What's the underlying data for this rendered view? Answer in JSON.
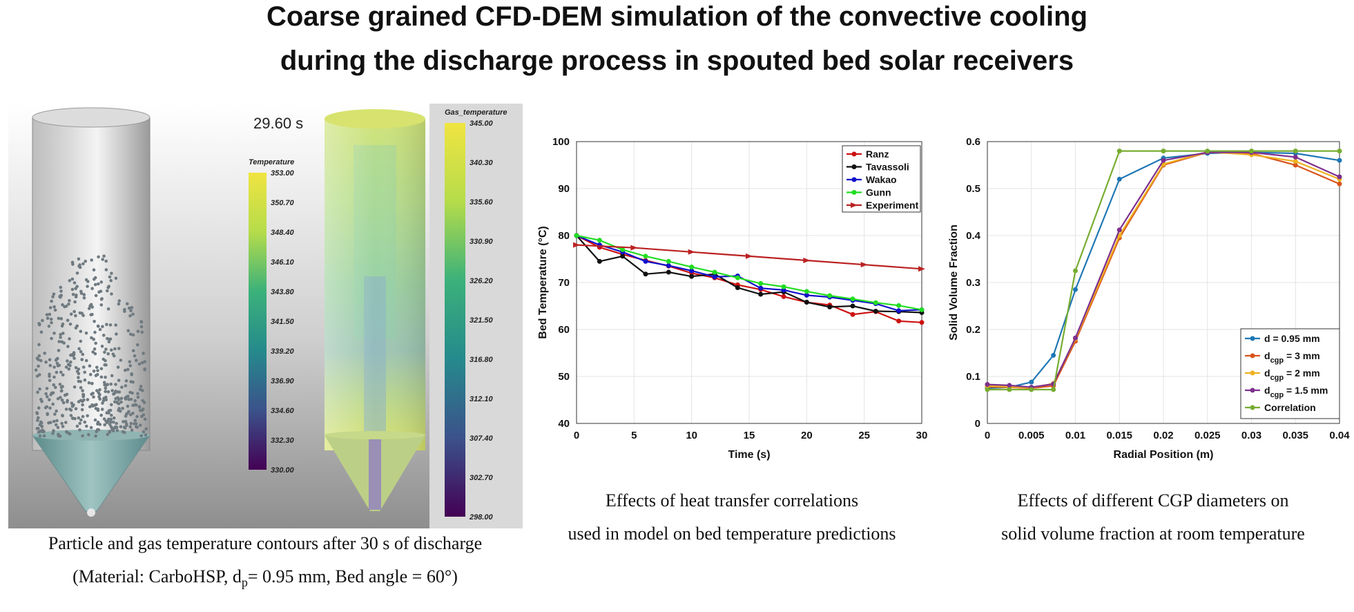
{
  "title": {
    "line1": "Coarse grained CFD-DEM simulation of the convective cooling",
    "line2": "during the discharge process in spouted bed solar receivers"
  },
  "simulation_panel": {
    "time_label": "29.60 s",
    "particle_colorbar": {
      "title": "Temperature",
      "ticks": [
        "353.00",
        "350.70",
        "348.40",
        "346.10",
        "343.80",
        "341.50",
        "339.20",
        "336.90",
        "334.60",
        "332.30",
        "330.00"
      ],
      "colors": [
        "#f0e442",
        "#c9df48",
        "#7cc26a",
        "#35a485",
        "#22868c",
        "#2c6f8e",
        "#3b528b",
        "#45377f",
        "#440154"
      ]
    },
    "gas_colorbar": {
      "title": "Gas_temperature",
      "ticks": [
        "345.00",
        "340.30",
        "335.60",
        "330.90",
        "326.20",
        "321.50",
        "316.80",
        "312.10",
        "307.40",
        "302.70",
        "298.00"
      ],
      "colors": [
        "#f0e442",
        "#c9df48",
        "#7cc26a",
        "#35a485",
        "#22868c",
        "#2c6f8e",
        "#3b528b",
        "#45377f",
        "#440154"
      ]
    },
    "caption_line1": "Particle and gas temperature contours after 30 s of discharge",
    "caption_line2_prefix": "(Material: CarboHSP, d",
    "caption_line2_sub": "p",
    "caption_line2_suffix": "= 0.95 mm, Bed angle = 60°)"
  },
  "chart_data": [
    {
      "type": "line",
      "xlabel": "Time (s)",
      "ylabel": "Bed Temperature (°C)",
      "xlim": [
        0,
        30
      ],
      "ylim": [
        40,
        100
      ],
      "xticks": [
        "0",
        "5",
        "10",
        "15",
        "20",
        "25",
        "30"
      ],
      "yticks": [
        "40",
        "50",
        "60",
        "70",
        "80",
        "90",
        "100"
      ],
      "grid": true,
      "legend": "top-right",
      "series": [
        {
          "name": "Ranz",
          "color": "#cc1111",
          "marker": "circle",
          "x": [
            0,
            2,
            4,
            6,
            8,
            10,
            12,
            14,
            16,
            18,
            20,
            22,
            24,
            26,
            28,
            30
          ],
          "y": [
            80,
            77.5,
            76,
            74.7,
            73.5,
            72,
            71,
            69.5,
            68.5,
            67,
            65.8,
            65.2,
            63.2,
            63.8,
            61.8,
            61.5
          ]
        },
        {
          "name": "Tavassoli",
          "color": "#111111",
          "marker": "circle",
          "x": [
            0,
            2,
            4,
            6,
            8,
            10,
            12,
            14,
            16,
            18,
            20,
            22,
            24,
            26,
            28,
            30
          ],
          "y": [
            80,
            74.5,
            75.6,
            71.8,
            72.2,
            71.3,
            71.8,
            68.9,
            67.5,
            68,
            65.8,
            64.8,
            65,
            63.9,
            63.8,
            63.6
          ]
        },
        {
          "name": "Wakao",
          "color": "#1111cc",
          "marker": "circle",
          "x": [
            0,
            2,
            4,
            6,
            8,
            10,
            12,
            14,
            16,
            18,
            20,
            22,
            24,
            26,
            28,
            30
          ],
          "y": [
            80,
            78,
            76.5,
            74.5,
            73.6,
            72.5,
            71.2,
            71.4,
            68.8,
            68.4,
            67.3,
            66.9,
            66.2,
            65.5,
            64,
            64.2
          ]
        },
        {
          "name": "Gunn",
          "color": "#22dd22",
          "marker": "circle",
          "x": [
            0,
            2,
            4,
            6,
            8,
            10,
            12,
            14,
            16,
            18,
            20,
            22,
            24,
            26,
            28,
            30
          ],
          "y": [
            80,
            79,
            77,
            75.6,
            74.5,
            73.3,
            72.2,
            71,
            69.8,
            69.1,
            68.1,
            67.2,
            66.5,
            65.7,
            65.1,
            64.2
          ]
        },
        {
          "name": "Experiment",
          "color": "#bb2222",
          "marker": "triangle",
          "x": [
            0,
            5,
            10,
            15,
            20,
            25,
            30
          ],
          "y": [
            78,
            77.4,
            76.5,
            75.6,
            74.7,
            73.8,
            72.9
          ]
        }
      ],
      "caption_line1": "Effects of heat transfer correlations",
      "caption_line2": "used in model on bed temperature predictions"
    },
    {
      "type": "line",
      "xlabel": "Radial Position (m)",
      "ylabel": "Solid Volume Fraction",
      "xlim": [
        0,
        0.04
      ],
      "ylim": [
        0,
        0.6
      ],
      "xticks": [
        "0",
        "0.005",
        "0.01",
        "0.015",
        "0.02",
        "0.025",
        "0.03",
        "0.035",
        "0.04"
      ],
      "yticks": [
        "0",
        "0.1",
        "0.2",
        "0.3",
        "0.4",
        "0.5",
        "0.6"
      ],
      "grid": true,
      "legend": "bottom-right",
      "series": [
        {
          "name_main": "d = 0.95 mm",
          "name_sub": "",
          "name_tail": "",
          "color": "#1f77b4",
          "x": [
            0,
            0.0025,
            0.005,
            0.0075,
            0.01,
            0.015,
            0.02,
            0.025,
            0.03,
            0.035,
            0.04
          ],
          "y": [
            0.075,
            0.077,
            0.088,
            0.145,
            0.285,
            0.52,
            0.565,
            0.575,
            0.577,
            0.575,
            0.56
          ]
        },
        {
          "name_main": "d",
          "name_sub": "cgp",
          "name_tail": " = 3 mm",
          "color": "#d95319",
          "x": [
            0,
            0.0025,
            0.005,
            0.0075,
            0.01,
            0.015,
            0.02,
            0.025,
            0.03,
            0.035,
            0.04
          ],
          "y": [
            0.078,
            0.077,
            0.075,
            0.08,
            0.175,
            0.395,
            0.55,
            0.577,
            0.575,
            0.55,
            0.51
          ]
        },
        {
          "name_main": "d",
          "name_sub": "cgp",
          "name_tail": " = 2 mm",
          "color": "#edb120",
          "x": [
            0,
            0.0025,
            0.005,
            0.0075,
            0.01,
            0.015,
            0.02,
            0.025,
            0.03,
            0.035,
            0.04
          ],
          "y": [
            0.08,
            0.078,
            0.076,
            0.085,
            0.18,
            0.4,
            0.552,
            0.578,
            0.572,
            0.558,
            0.52
          ]
        },
        {
          "name_main": "d",
          "name_sub": "cgp",
          "name_tail": " = 1.5 mm",
          "color": "#7e2f8e",
          "x": [
            0,
            0.0025,
            0.005,
            0.0075,
            0.01,
            0.015,
            0.02,
            0.025,
            0.03,
            0.035,
            0.04
          ],
          "y": [
            0.083,
            0.081,
            0.077,
            0.084,
            0.182,
            0.412,
            0.56,
            0.577,
            0.577,
            0.567,
            0.525
          ]
        },
        {
          "name_main": "Correlation",
          "name_sub": "",
          "name_tail": "",
          "color": "#77ac30",
          "x": [
            0,
            0.0025,
            0.005,
            0.0075,
            0.01,
            0.015,
            0.02,
            0.025,
            0.03,
            0.035,
            0.04
          ],
          "y": [
            0.072,
            0.072,
            0.072,
            0.072,
            0.325,
            0.58,
            0.58,
            0.58,
            0.58,
            0.58,
            0.58
          ]
        }
      ],
      "caption_line1": "Effects of different CGP diameters on",
      "caption_line2": "solid volume fraction at room temperature"
    }
  ]
}
